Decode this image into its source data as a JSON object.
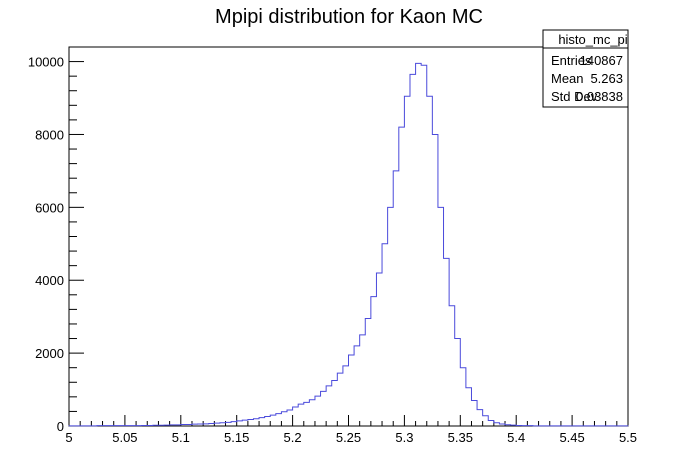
{
  "chart_data": {
    "type": "bar",
    "title": "Mpipi distribution for Kaon MC",
    "xlabel": "",
    "ylabel": "",
    "xlim": [
      5.0,
      5.5
    ],
    "ylim": [
      0,
      10400
    ],
    "x_ticks": [
      "5",
      "5.05",
      "5.1",
      "5.15",
      "5.2",
      "5.25",
      "5.3",
      "5.35",
      "5.4",
      "5.45",
      "5.5"
    ],
    "x_tick_values": [
      5.0,
      5.05,
      5.1,
      5.15,
      5.2,
      5.25,
      5.3,
      5.35,
      5.4,
      5.45,
      5.5
    ],
    "y_ticks": [
      "0",
      "2000",
      "4000",
      "6000",
      "8000",
      "10000"
    ],
    "y_tick_values": [
      0,
      2000,
      4000,
      6000,
      8000,
      10000
    ],
    "bin_edges_start": 5.0,
    "bin_width": 0.005,
    "series": [
      {
        "line_color": "#4a4adb",
        "values": [
          5,
          5,
          5,
          5,
          5,
          10,
          10,
          10,
          10,
          10,
          10,
          10,
          10,
          15,
          15,
          20,
          20,
          25,
          30,
          30,
          40,
          40,
          50,
          55,
          60,
          70,
          80,
          90,
          100,
          120,
          140,
          160,
          180,
          200,
          230,
          260,
          300,
          340,
          390,
          440,
          520,
          600,
          650,
          720,
          820,
          950,
          1100,
          1250,
          1450,
          1650,
          1950,
          2200,
          2500,
          2950,
          3550,
          4200,
          5000,
          6000,
          7000,
          8200,
          9050,
          9650,
          9950,
          9900,
          9050,
          8000,
          6000,
          4600,
          3300,
          2400,
          1600,
          1050,
          700,
          450,
          280,
          150,
          90,
          55,
          35,
          25,
          15,
          10,
          10,
          5,
          5,
          5,
          5,
          5,
          5,
          5,
          5,
          5,
          5,
          5,
          5,
          5,
          5,
          5,
          5,
          5
        ]
      }
    ],
    "grid": false,
    "legend": "none"
  },
  "stats_box": {
    "name": "histo_mc_pi",
    "rows": [
      {
        "label": "Entries",
        "value": "140867"
      },
      {
        "label": "Mean",
        "value": "5.263"
      },
      {
        "label": "Std Dev",
        "value": "0.03838"
      }
    ]
  }
}
